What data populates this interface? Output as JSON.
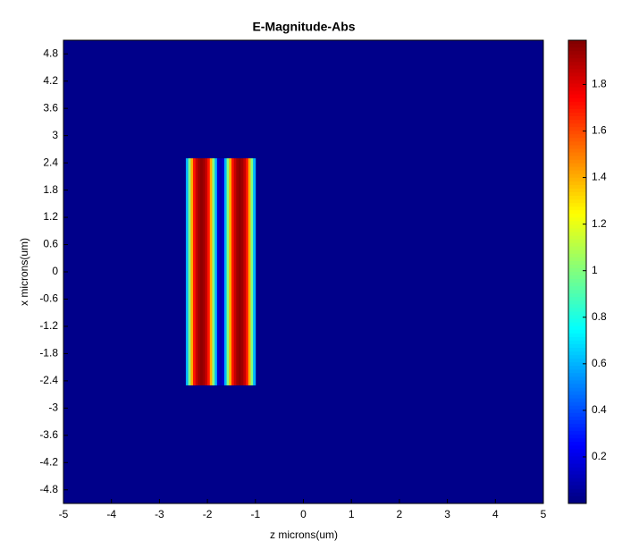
{
  "chart_data": {
    "type": "heatmap",
    "title": "E-Magnitude-Abs",
    "xlabel": "z microns(um)",
    "ylabel": "x microns(um)",
    "xlim": [
      -5,
      5
    ],
    "ylim": [
      -5.1,
      5.1
    ],
    "xticks": [
      -5,
      -4,
      -3,
      -2,
      -1,
      0,
      1,
      2,
      3,
      4,
      5
    ],
    "yticks": [
      4.8,
      4.2,
      3.6,
      3,
      2.4,
      1.8,
      1.2,
      0.6,
      0,
      -0.6,
      -1.2,
      -1.8,
      -2.4,
      -3,
      -3.6,
      -4.2,
      -4.8
    ],
    "background": 0.02,
    "x_range": [
      -2.5,
      2.5
    ],
    "z_edges": [
      -2.45,
      -2.4,
      -2.35,
      -2.3,
      -2.25,
      -2.2,
      -2.15,
      -2.1,
      -2.05,
      -2.0,
      -1.95,
      -1.9,
      -1.85,
      -1.8,
      -1.75,
      -1.7,
      -1.65,
      -1.6,
      -1.55,
      -1.5,
      -1.45,
      -1.4,
      -1.35,
      -1.3,
      -1.25,
      -1.2,
      -1.15,
      -1.1,
      -1.05,
      -1.0
    ],
    "values": [
      0.6,
      1.0,
      1.4,
      1.7,
      1.85,
      1.93,
      1.96,
      1.93,
      1.85,
      1.7,
      1.4,
      1.0,
      0.6,
      0.15,
      0.1,
      0.15,
      0.6,
      1.0,
      1.4,
      1.7,
      1.85,
      1.93,
      1.96,
      1.93,
      1.85,
      1.7,
      1.4,
      1.0,
      0.6
    ],
    "colormap": "jet",
    "clim": [
      0,
      1.99
    ],
    "cticks": [
      0.2,
      0.4,
      0.6,
      0.8,
      1,
      1.2,
      1.4,
      1.6,
      1.8
    ]
  }
}
